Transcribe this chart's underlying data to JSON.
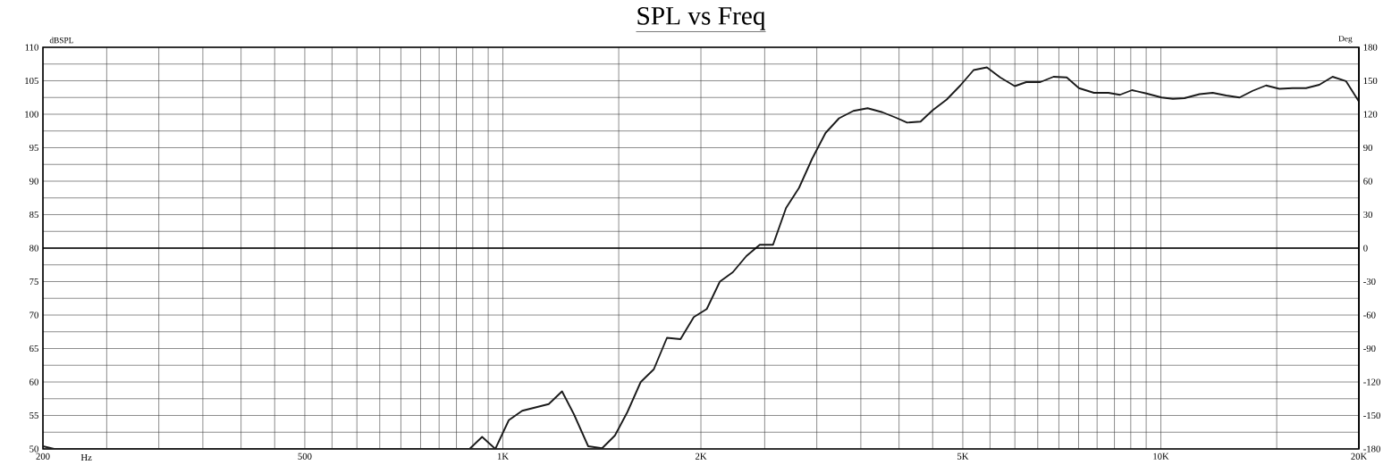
{
  "chart_data": {
    "type": "line",
    "title": "SPL vs Freq",
    "xlabel": "Hz",
    "ylabel": "dBSPL",
    "y2label": "Deg",
    "log": "x",
    "grid": true,
    "color": "#1a1a1a",
    "x": [
      200,
      208,
      890,
      930,
      974,
      1021,
      1070,
      1174,
      1230,
      1282,
      1348,
      1415,
      1480,
      1546,
      1620,
      1696,
      1776,
      1862,
      1951,
      2041,
      2137,
      2236,
      2344,
      2457,
      2574,
      2694,
      2819,
      2953,
      3093,
      3243,
      3410,
      3584,
      3774,
      3955,
      4115,
      4313,
      4500,
      4727,
      4957,
      5193,
      5440,
      5700,
      5998,
      6243,
      6557,
      6869,
      7194,
      7508,
      7914,
      8323,
      8665,
      9040,
      9508,
      10027,
      10430,
      10860,
      11450,
      11990,
      12570,
      13170,
      13790,
      14450,
      15140,
      15860,
      16620,
      17410,
      18240,
      19110,
      20000
    ],
    "values": [
      50.4,
      50,
      50,
      51.8,
      50,
      54.3,
      55.7,
      56.7,
      58.6,
      55.2,
      50.4,
      50.1,
      52.0,
      55.5,
      60.0,
      61.9,
      66.6,
      66.4,
      69.7,
      70.9,
      75.0,
      76.4,
      78.8,
      80.5,
      80.5,
      86.0,
      89.0,
      93.4,
      97.2,
      99.4,
      100.5,
      100.9,
      100.3,
      99.5,
      98.75,
      98.9,
      100.6,
      102.2,
      104.3,
      106.6,
      107.0,
      105.5,
      104.2,
      104.8,
      104.8,
      105.6,
      105.5,
      103.9,
      103.2,
      103.2,
      102.9,
      103.6,
      103.1,
      102.5,
      102.3,
      102.4,
      103.0,
      103.2,
      102.8,
      102.5,
      103.5,
      104.3,
      103.8,
      103.9,
      103.9,
      104.4,
      105.6,
      104.95,
      101.9
    ],
    "xlim": [
      200,
      20000
    ],
    "xticks": [
      200,
      {
        "value": 250,
        "label": null
      },
      {
        "value": 300,
        "label": null
      },
      {
        "value": 350,
        "label": null
      },
      {
        "value": 400,
        "label": null
      },
      {
        "value": 450,
        "label": null
      },
      500,
      {
        "value": 550,
        "label": null
      },
      {
        "value": 600,
        "label": null
      },
      {
        "value": 650,
        "label": null
      },
      {
        "value": 700,
        "label": null
      },
      {
        "value": 750,
        "label": null
      },
      {
        "value": 800,
        "label": null
      },
      {
        "value": 850,
        "label": null
      },
      {
        "value": 900,
        "label": null
      },
      {
        "value": 950,
        "label": null
      },
      {
        "value": 1000,
        "label": "1K"
      },
      {
        "value": 1500,
        "label": null
      },
      {
        "value": 2000,
        "label": "2K"
      },
      {
        "value": 2500,
        "label": null
      },
      {
        "value": 3000,
        "label": null
      },
      {
        "value": 3500,
        "label": null
      },
      {
        "value": 4000,
        "label": null
      },
      {
        "value": 4500,
        "label": null
      },
      {
        "value": 5000,
        "label": "5K"
      },
      {
        "value": 5500,
        "label": null
      },
      {
        "value": 6000,
        "label": null
      },
      {
        "value": 6500,
        "label": null
      },
      {
        "value": 7000,
        "label": null
      },
      {
        "value": 7500,
        "label": null
      },
      {
        "value": 8000,
        "label": null
      },
      {
        "value": 8500,
        "label": null
      },
      {
        "value": 9000,
        "label": null
      },
      {
        "value": 9500,
        "label": null
      },
      {
        "value": 10000,
        "label": "10K"
      },
      {
        "value": 15000,
        "label": null
      },
      {
        "value": 20000,
        "label": "20K"
      }
    ],
    "ylim": [
      50,
      110
    ],
    "yticks": [
      50,
      {
        "value": 52.5,
        "label": null
      },
      55,
      {
        "value": 57.5,
        "label": null
      },
      60,
      {
        "value": 62.5,
        "label": null
      },
      65,
      {
        "value": 67.5,
        "label": null
      },
      70,
      {
        "value": 72.5,
        "label": null
      },
      75,
      {
        "value": 77.5,
        "label": null
      },
      80,
      {
        "value": 82.5,
        "label": null
      },
      85,
      {
        "value": 87.5,
        "label": null
      },
      90,
      {
        "value": 92.5,
        "label": null
      },
      95,
      {
        "value": 97.5,
        "label": null
      },
      100,
      {
        "value": 102.5,
        "label": null
      },
      105,
      {
        "value": 107.5,
        "label": null
      },
      110
    ],
    "y2lim": [
      -180,
      180
    ],
    "y2ticks": [
      -180,
      -150,
      -120,
      -90,
      -60,
      -30,
      0,
      30,
      60,
      90,
      120,
      150,
      180
    ],
    "ref_lines": [
      {
        "axis": "y2",
        "value": 0,
        "color": "#000000"
      }
    ]
  }
}
